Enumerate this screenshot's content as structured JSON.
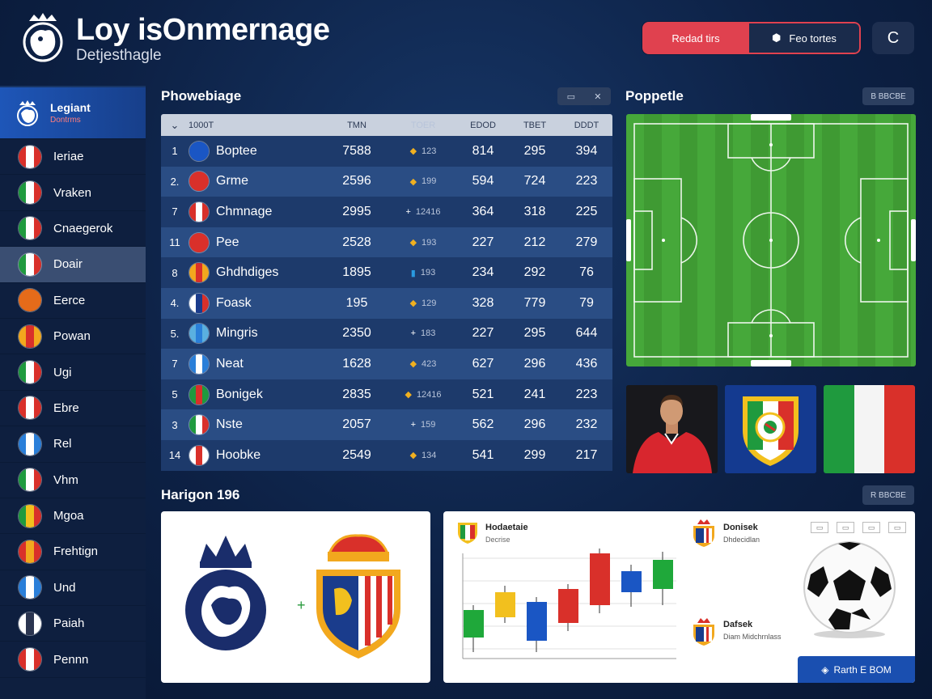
{
  "header": {
    "title": "Loy isOnmernage",
    "subtitle": "Detjesthagle",
    "primary_label": "Redad tirs",
    "secondary_label": "Feo tortes",
    "icon_btn_glyph": "C"
  },
  "sidebar": {
    "header_title": "Legiant",
    "header_sub": "Dontrms",
    "items": [
      {
        "label": "Ieriae",
        "flag": [
          "#d9302a",
          "#ffffff",
          "#d9302a"
        ]
      },
      {
        "label": "Vraken",
        "flag": [
          "#1f9a3e",
          "#ffffff",
          "#d9302a"
        ]
      },
      {
        "label": "Cnaegerok",
        "flag": [
          "#1f9a3e",
          "#ffffff",
          "#d9302a"
        ]
      },
      {
        "label": "Doair",
        "flag": [
          "#1f9a3e",
          "#ffffff",
          "#d9302a"
        ],
        "active": true
      },
      {
        "label": "Eerce",
        "flag": [
          "#e56b1a",
          "#e56b1a",
          "#e56b1a"
        ]
      },
      {
        "label": "Powan",
        "flag": [
          "#f2a81e",
          "#d9302a",
          "#f2a81e"
        ]
      },
      {
        "label": "Ugi",
        "flag": [
          "#1f9a3e",
          "#ffffff",
          "#d9302a"
        ]
      },
      {
        "label": "Ebre",
        "flag": [
          "#d9302a",
          "#ffffff",
          "#d9302a"
        ]
      },
      {
        "label": "Rel",
        "flag": [
          "#2a7fd9",
          "#ffffff",
          "#2a7fd9"
        ]
      },
      {
        "label": "Vhm",
        "flag": [
          "#1f9a3e",
          "#ffffff",
          "#d9302a"
        ]
      },
      {
        "label": "Mgoa",
        "flag": [
          "#1f9a3e",
          "#f2c01e",
          "#d9302a"
        ]
      },
      {
        "label": "Frehtign",
        "flag": [
          "#d9302a",
          "#f2a81e",
          "#d9302a"
        ]
      },
      {
        "label": "Und",
        "flag": [
          "#2a7fd9",
          "#ffffff",
          "#2a7fd9"
        ]
      },
      {
        "label": "Paiah",
        "flag": [
          "#ffffff",
          "#2b3550",
          "#ffffff"
        ]
      },
      {
        "label": "Pennn",
        "flag": [
          "#d9302a",
          "#ffffff",
          "#d9302a"
        ]
      }
    ]
  },
  "standings": {
    "title": "Phowebiage",
    "btn_a": "▭",
    "btn_b": "✕",
    "columns": {
      "rank": "",
      "team": "1000T",
      "pts": "TMN",
      "trend": "TOER",
      "c1": "EDOD",
      "c2": "TBET",
      "c3": "DDDT"
    },
    "rows": [
      {
        "rank": "1",
        "team": "Boptee",
        "pts": "7588",
        "trend": "123",
        "trend_icon": "◆",
        "c1": "814",
        "c2": "295",
        "c3": "394",
        "flag": [
          "#1a56c4",
          "#1a56c4",
          "#1a56c4"
        ]
      },
      {
        "rank": "2.",
        "team": "Grme",
        "pts": "2596",
        "trend": "199",
        "trend_icon": "◆",
        "c1": "594",
        "c2": "724",
        "c3": "223",
        "flag": [
          "#d9302a",
          "#d9302a",
          "#d9302a"
        ]
      },
      {
        "rank": "7",
        "team": "Chmnage",
        "pts": "2995",
        "trend": "12416",
        "trend_icon": "+",
        "c1": "364",
        "c2": "318",
        "c3": "225",
        "flag": [
          "#d9302a",
          "#ffffff",
          "#d9302a"
        ]
      },
      {
        "rank": "11",
        "team": "Pee",
        "pts": "2528",
        "trend": "193",
        "trend_icon": "◆",
        "c1": "227",
        "c2": "212",
        "c3": "279",
        "flag": [
          "#d9302a",
          "#d9302a",
          "#d9302a"
        ]
      },
      {
        "rank": "8",
        "team": "Ghdhdiges",
        "pts": "1895",
        "trend": "193",
        "trend_icon": "▮",
        "c1": "234",
        "c2": "292",
        "c3": "76",
        "flag": [
          "#f2a81e",
          "#d9302a",
          "#f2a81e"
        ]
      },
      {
        "rank": "4.",
        "team": "Foask",
        "pts": "195",
        "trend": "129",
        "trend_icon": "◆",
        "c1": "328",
        "c2": "779",
        "c3": "79",
        "flag": [
          "#ffffff",
          "#1a3c8c",
          "#d9302a"
        ]
      },
      {
        "rank": "5.",
        "team": "Mingris",
        "pts": "2350",
        "trend": "183",
        "trend_icon": "+",
        "c1": "227",
        "c2": "295",
        "c3": "644",
        "flag": [
          "#5ab0e0",
          "#2a7fd9",
          "#5ab0e0"
        ]
      },
      {
        "rank": "7",
        "team": "Neat",
        "pts": "1628",
        "trend": "423",
        "trend_icon": "◆",
        "c1": "627",
        "c2": "296",
        "c3": "436",
        "flag": [
          "#2a7fd9",
          "#ffffff",
          "#2a7fd9"
        ]
      },
      {
        "rank": "5",
        "team": "Bonigek",
        "pts": "2835",
        "trend": "12416",
        "trend_icon": "◆",
        "c1": "521",
        "c2": "241",
        "c3": "223",
        "flag": [
          "#1f9a3e",
          "#d9302a",
          "#1f9a3e"
        ]
      },
      {
        "rank": "3",
        "team": "Nste",
        "pts": "2057",
        "trend": "159",
        "trend_icon": "+",
        "c1": "562",
        "c2": "296",
        "c3": "232",
        "flag": [
          "#1f9a3e",
          "#ffffff",
          "#d9302a"
        ]
      },
      {
        "rank": "14",
        "team": "Hoobke",
        "pts": "2549",
        "trend": "134",
        "trend_icon": "◆",
        "c1": "541",
        "c2": "299",
        "c3": "217",
        "flag": [
          "#ffffff",
          "#d9302a",
          "#ffffff"
        ]
      }
    ]
  },
  "pitch": {
    "title": "Poppetle",
    "btn": "B BBCBE"
  },
  "bottom": {
    "title": "Harigon 196",
    "btn": "R BBCBE",
    "chart_title": "Hodaetaie",
    "chart_sub": "Decrise",
    "info1_title": "Donisek",
    "info1_sub": "Dhdecidlan",
    "info2_title": "Dafsek",
    "info2_sub": "Diam Midchrnlass",
    "cta_label": "Rarth E BOM",
    "mini_icons": [
      "▭",
      "▭",
      "▭",
      "▭"
    ]
  },
  "colors": {
    "accent_red": "#e0414f",
    "accent_blue": "#1a4fb0",
    "pitch_green": "#46a83a"
  }
}
